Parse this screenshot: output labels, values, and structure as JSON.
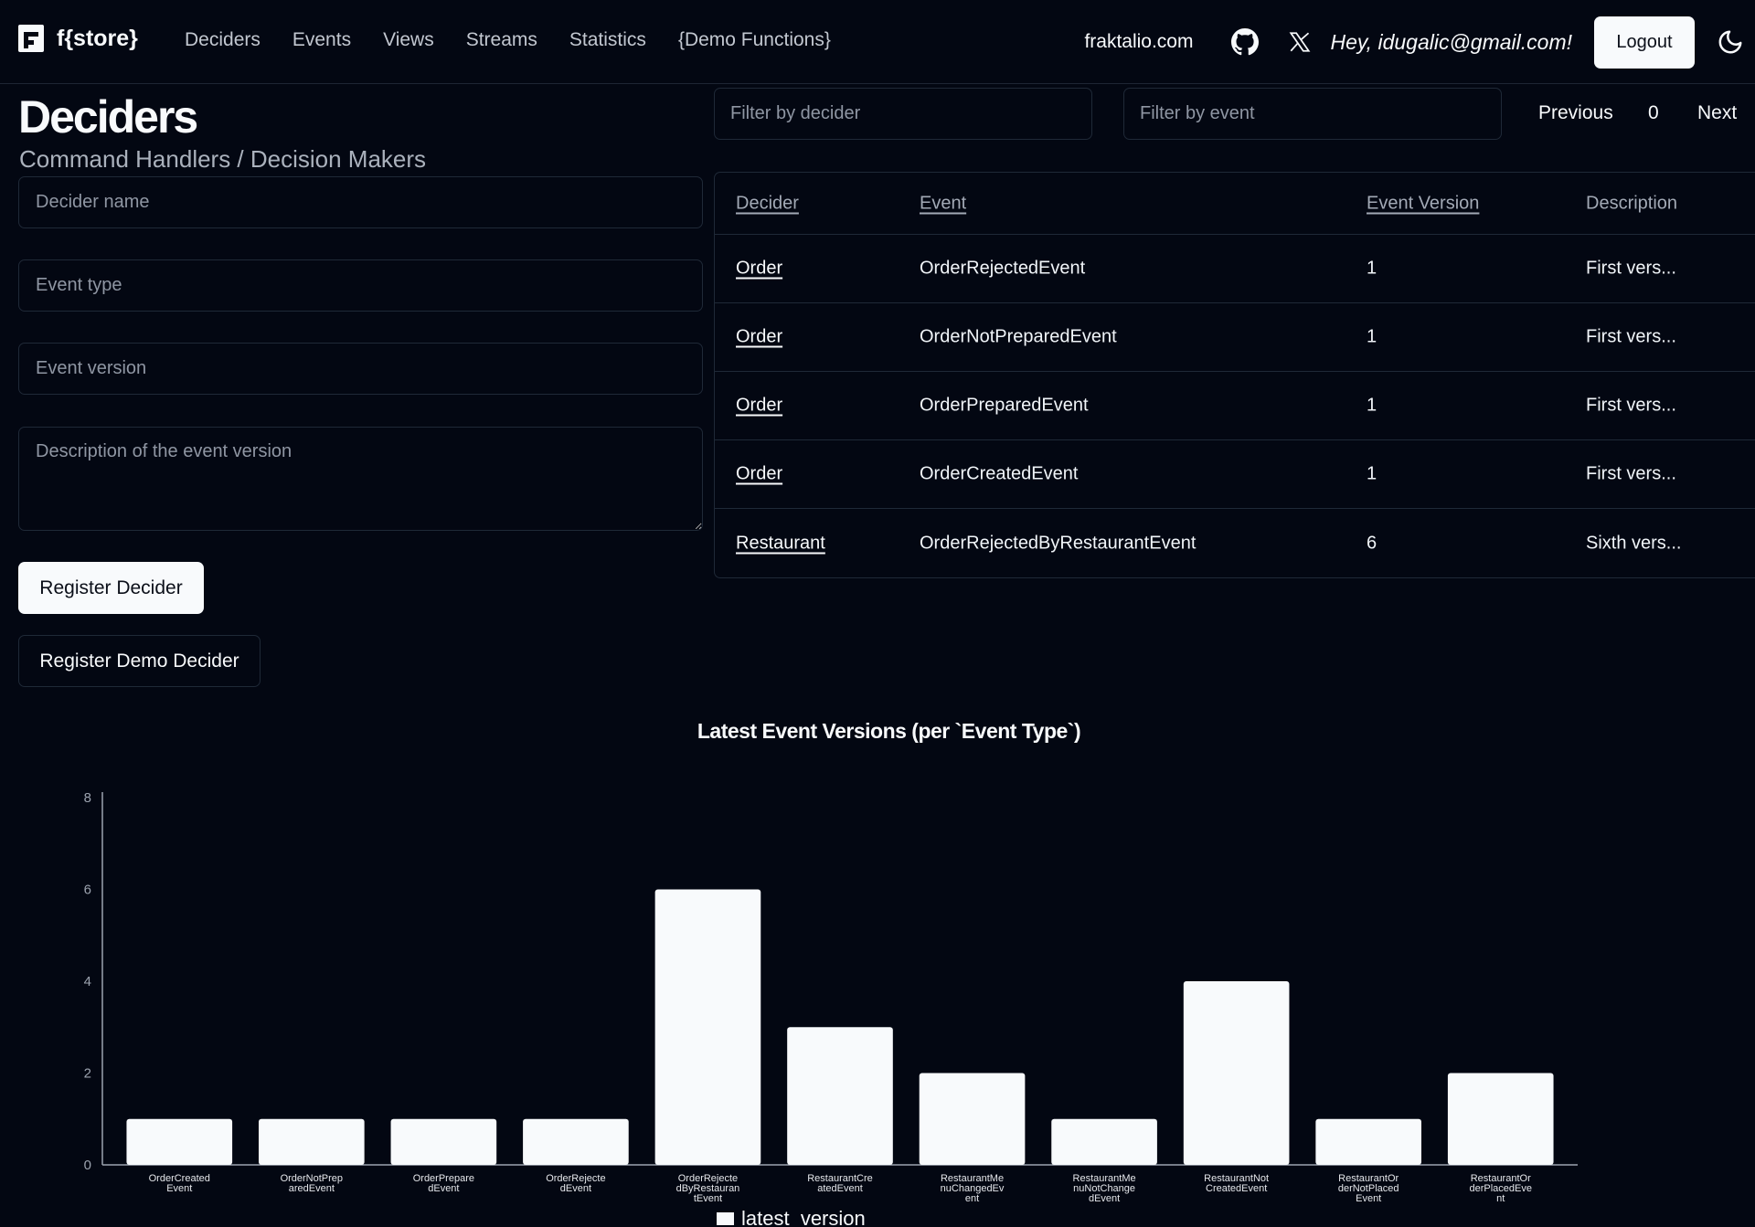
{
  "brand": {
    "name": "f{store}"
  },
  "nav": {
    "links": [
      "Deciders",
      "Events",
      "Views",
      "Streams",
      "Statistics",
      "{Demo Functions}"
    ],
    "site": "fraktalio.com",
    "greeting": "Hey, idugalic@gmail.com!",
    "logout": "Logout",
    "icons": [
      "github-icon",
      "x-icon",
      "moon-icon"
    ]
  },
  "page": {
    "title": "Deciders",
    "subtitle": "Command Handlers / Decision Makers"
  },
  "form": {
    "decider_name_placeholder": "Decider name",
    "event_type_placeholder": "Event type",
    "event_version_placeholder": "Event version",
    "description_placeholder": "Description of the event version",
    "register_button": "Register Decider",
    "register_demo_button": "Register Demo Decider"
  },
  "filters": {
    "decider_placeholder": "Filter by decider",
    "event_placeholder": "Filter by event"
  },
  "pagination": {
    "previous": "Previous",
    "page": "0",
    "next": "Next"
  },
  "table": {
    "headers": [
      "Decider",
      "Event",
      "Event Version",
      "Description"
    ],
    "rows": [
      {
        "decider": "Order",
        "event": "OrderRejectedEvent",
        "version": "1",
        "description": "First vers..."
      },
      {
        "decider": "Order",
        "event": "OrderNotPreparedEvent",
        "version": "1",
        "description": "First vers..."
      },
      {
        "decider": "Order",
        "event": "OrderPreparedEvent",
        "version": "1",
        "description": "First vers..."
      },
      {
        "decider": "Order",
        "event": "OrderCreatedEvent",
        "version": "1",
        "description": "First vers..."
      },
      {
        "decider": "Restaurant",
        "event": "OrderRejectedByRestaurantEvent",
        "version": "6",
        "description": "Sixth vers..."
      }
    ]
  },
  "chart_data": {
    "type": "bar",
    "title": "Latest Event Versions (per `Event Type`)",
    "categories": [
      "OrderCreatedEvent",
      "OrderNotPreparedEvent",
      "OrderPreparedEvent",
      "OrderRejectedEvent",
      "OrderRejectedByRestaurantEvent",
      "RestaurantCreatedEvent",
      "RestaurantMenuChangedEvent",
      "RestaurantMenuNotChangedEvent",
      "RestaurantNotCreatedEvent",
      "RestaurantOrderNotPlacedEvent",
      "RestaurantOrderPlacedEvent"
    ],
    "category_label_lines": [
      [
        "OrderCreated",
        "Event"
      ],
      [
        "OrderNotPrep",
        "aredEvent"
      ],
      [
        "OrderPrepare",
        "dEvent"
      ],
      [
        "OrderRejecte",
        "dEvent"
      ],
      [
        "OrderRejecte",
        "dByRestauran",
        "tEvent"
      ],
      [
        "RestaurantCre",
        "atedEvent"
      ],
      [
        "RestaurantMe",
        "nuChangedEv",
        "ent"
      ],
      [
        "RestaurantMe",
        "nuNotChange",
        "dEvent"
      ],
      [
        "RestaurantNot",
        "CreatedEvent"
      ],
      [
        "RestaurantOr",
        "derNotPlaced",
        "Event"
      ],
      [
        "RestaurantOr",
        "derPlacedEve",
        "nt"
      ]
    ],
    "series": [
      {
        "name": "latest_version",
        "values": [
          1,
          1,
          1,
          1,
          6,
          3,
          2,
          1,
          4,
          1,
          2
        ]
      }
    ],
    "ylim": [
      0,
      8
    ],
    "yticks": [
      0,
      2,
      4,
      6,
      8
    ],
    "grid": false,
    "legend": "bottom",
    "bar_color": "#f8fafc",
    "axis_color": "#9ca3af"
  }
}
